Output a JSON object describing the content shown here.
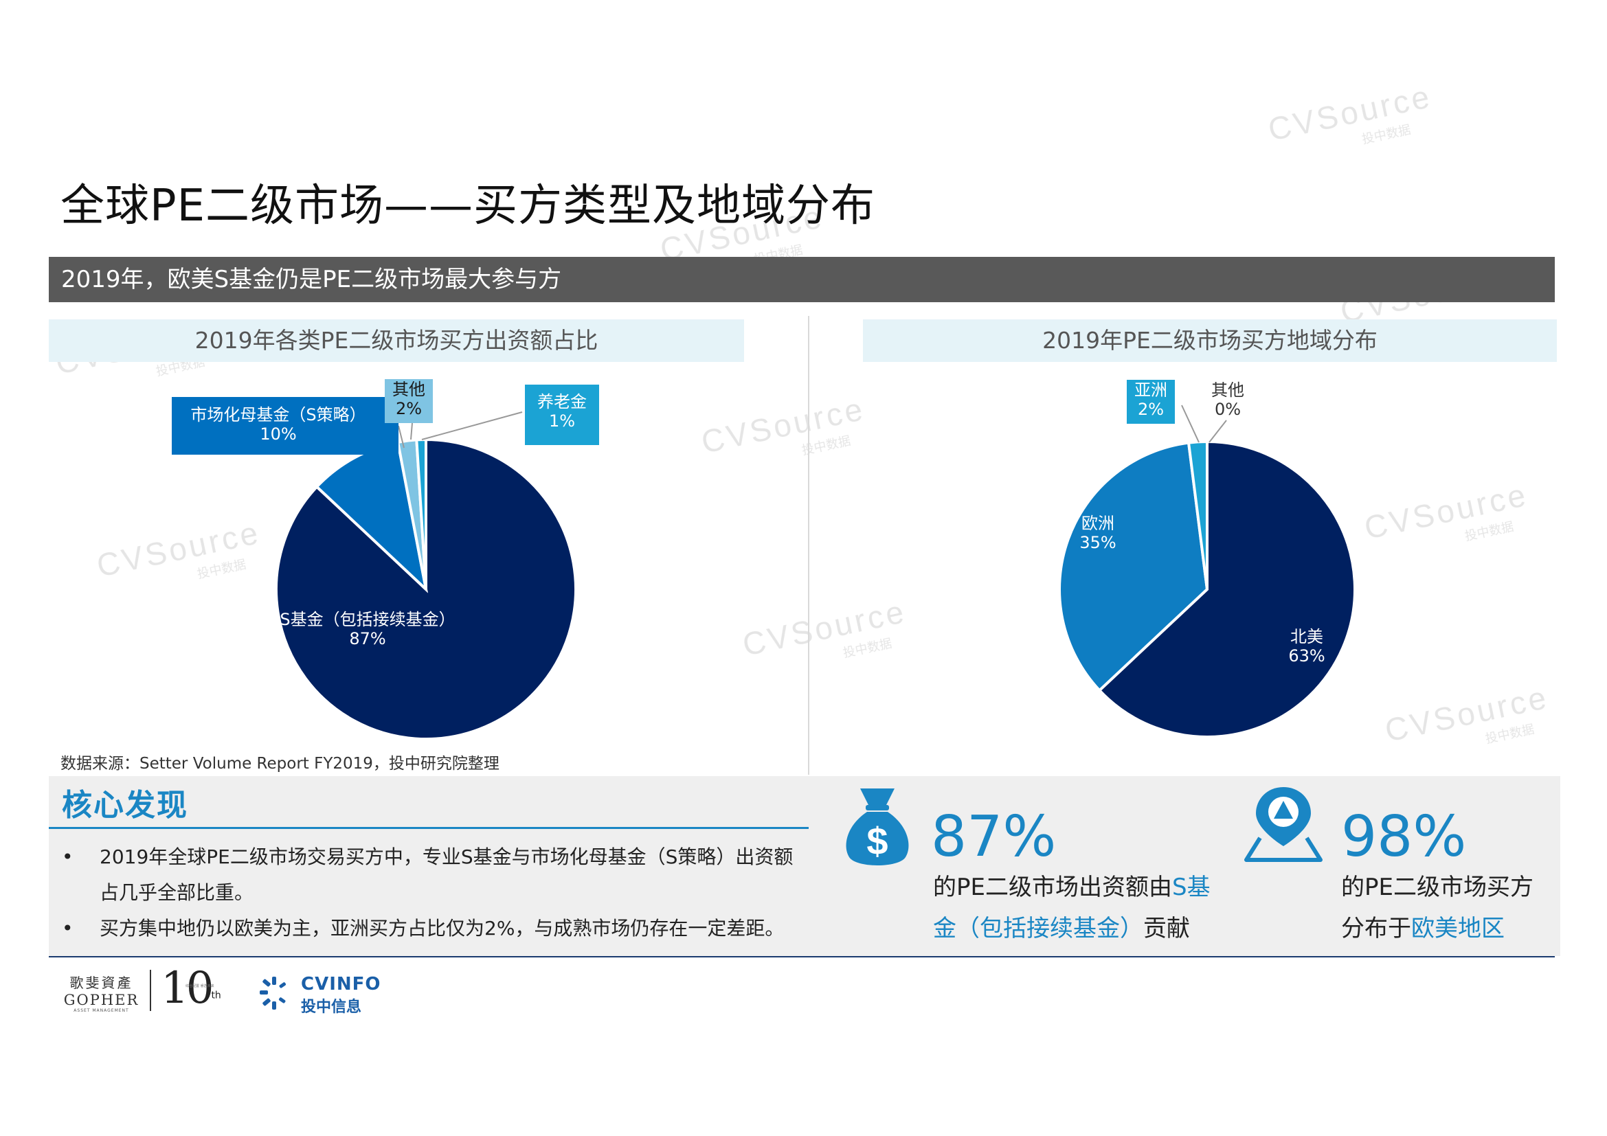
{
  "page": {
    "title": "全球PE二级市场——买方类型及地域分布",
    "subtitle": "2019年，欧美S基金仍是PE二级市场最大参与方",
    "source": "数据来源：Setter Volume Report FY2019，投中研究院整理"
  },
  "watermark": {
    "main": "CVSource",
    "sub": "投中数据"
  },
  "chart_data": [
    {
      "type": "pie",
      "title": "2019年各类PE二级市场买方出资额占比",
      "unit": "%",
      "slices": [
        {
          "label": "S基金（包括接续基金）",
          "value": 87,
          "display": "87%",
          "color": "#002060"
        },
        {
          "label": "市场化母基金（S策略）",
          "value": 10,
          "display": "10%",
          "color": "#0070c0"
        },
        {
          "label": "其他",
          "value": 2,
          "display": "2%",
          "color": "#7fc4e3"
        },
        {
          "label": "养老金",
          "value": 1,
          "display": "1%",
          "color": "#1ba3d4"
        }
      ]
    },
    {
      "type": "pie",
      "title": "2019年PE二级市场买方地域分布",
      "unit": "%",
      "slices": [
        {
          "label": "北美",
          "value": 63,
          "display": "63%",
          "color": "#002060"
        },
        {
          "label": "欧洲",
          "value": 35,
          "display": "35%",
          "color": "#0e7dc2"
        },
        {
          "label": "亚洲",
          "value": 2,
          "display": "2%",
          "color": "#1ba3d4"
        },
        {
          "label": "其他",
          "value": 0,
          "display": "0%",
          "color": "#7fc4e3"
        }
      ]
    }
  ],
  "findings": {
    "title": "核心发现",
    "bullets": [
      {
        "line1": "2019年全球PE二级市场交易买方中，专业S基金与市场化母基金（S策略）出资额",
        "line2": "占几乎全部比重。"
      },
      {
        "line1": "买方集中地仍以欧美为主，亚洲买方占比仅为2%，与成熟市场仍存在一定差距。"
      }
    ],
    "stat1": {
      "number": "87%",
      "text_pre": "的PE二级市场出资额由",
      "text_hl": "S基金（包括接续基金）",
      "text_post": "贡献"
    },
    "stat2": {
      "number": "98%",
      "text_pre": "的PE二级市场买方分布于",
      "text_hl": "欧美地区",
      "text_post": ""
    }
  },
  "logos": {
    "gopher_cn": "歌斐資產",
    "gopher_en": "GOPHER",
    "gopher_sub": "ASSET MANAGEMENT",
    "tenth": "10",
    "tenth_sup": "th",
    "tenth_small": "综合配置 睿选未来",
    "cvinfo_en": "CVINFO",
    "cvinfo_cn": "投中信息"
  },
  "colors": {
    "accent": "#1a86c4",
    "navy": "#002060",
    "subbar": "#595959",
    "panel_bg": "#e5f3f8",
    "findings_bg": "#efefef"
  }
}
